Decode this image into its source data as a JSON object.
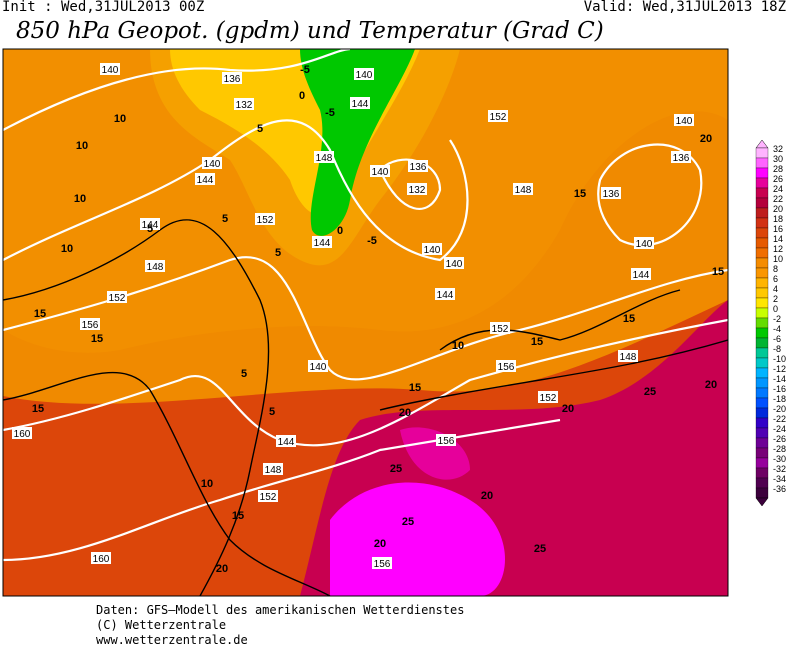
{
  "header": {
    "init": "Init : Wed,31JUL2013 00Z",
    "valid": "Valid: Wed,31JUL2013 18Z",
    "title": "850 hPa Geopot. (gpdm) und Temperatur (Grad C)"
  },
  "colorbar": {
    "levels": [
      32,
      30,
      28,
      26,
      24,
      22,
      20,
      18,
      16,
      14,
      12,
      10,
      8,
      6,
      4,
      2,
      0,
      -2,
      -4,
      -6,
      -8,
      -10,
      -12,
      -14,
      -16,
      -18,
      -20,
      -22,
      -24,
      -26,
      -28,
      -30,
      -32,
      -34,
      -36
    ],
    "colors": [
      "#ffb4ff",
      "#ff64ff",
      "#ff00ff",
      "#e6009b",
      "#c80050",
      "#b4003c",
      "#be1e1e",
      "#d23214",
      "#dc460a",
      "#e65a00",
      "#f06e00",
      "#f58c00",
      "#fa9600",
      "#ffb400",
      "#ffc800",
      "#ffe600",
      "#c8ff00",
      "#64dc00",
      "#00c800",
      "#00b432",
      "#00c896",
      "#00c8c8",
      "#00b4ff",
      "#0096ff",
      "#0078ff",
      "#0050ff",
      "#0028dc",
      "#3200c8",
      "#5000b4",
      "#6e0096",
      "#780078",
      "#96009c",
      "#6e0064",
      "#500050",
      "#3c003c"
    ]
  },
  "map": {
    "geopotential_labels": [
      140,
      136,
      132,
      140,
      144,
      148,
      152,
      144,
      148,
      152,
      156,
      160,
      140,
      136,
      132,
      140,
      140,
      144,
      152,
      156,
      152,
      148,
      140,
      144,
      148,
      152,
      160,
      156,
      156,
      140,
      136,
      136,
      140,
      144,
      148,
      152,
      140,
      144,
      144
    ],
    "temperature_labels": [
      10,
      10,
      10,
      10,
      15,
      15,
      15,
      15,
      10,
      20,
      20,
      20,
      25,
      25,
      20,
      25,
      25,
      20,
      20,
      15,
      10,
      15,
      15,
      15,
      20,
      15,
      5,
      5,
      5,
      0,
      -5,
      -5,
      -5,
      0,
      5,
      5,
      5
    ]
  },
  "footer": {
    "lines": [
      "Daten: GFS–Modell des amerikanischen Wetterdienstes",
      "(C) Wetterzentrale",
      "www.wetterzentrale.de"
    ]
  }
}
